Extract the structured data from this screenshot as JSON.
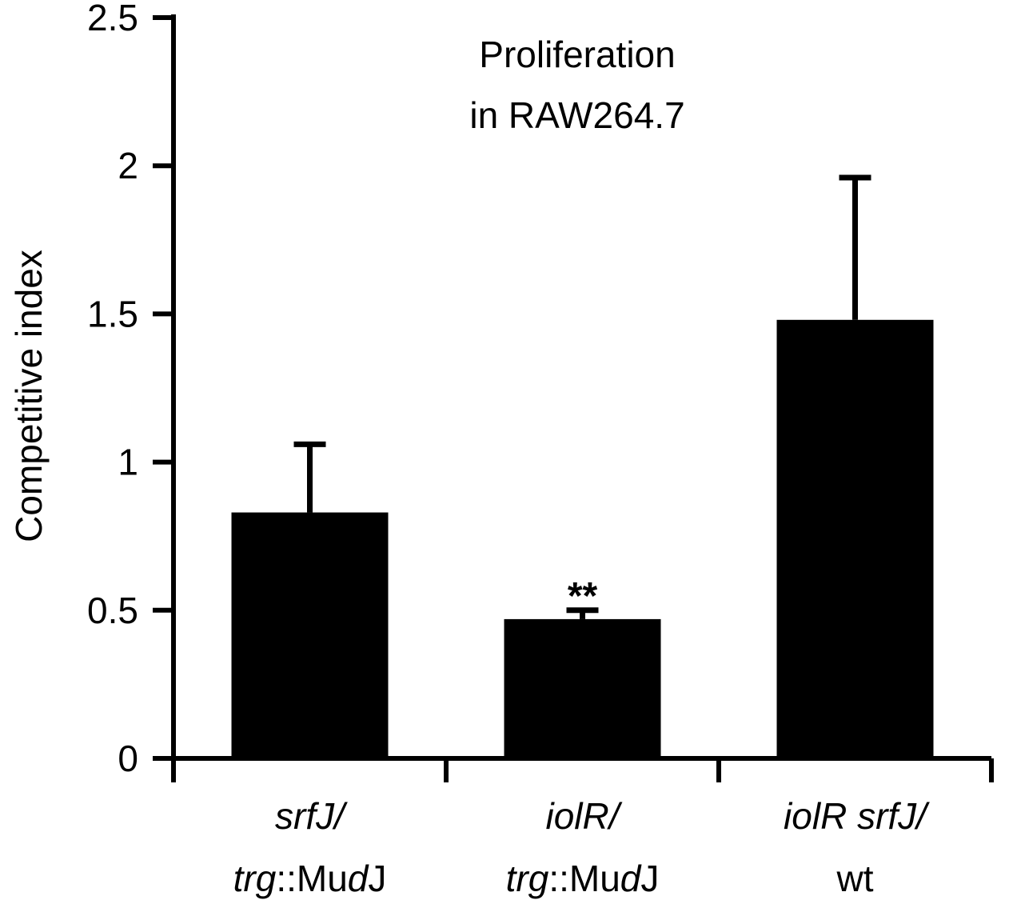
{
  "chart_data": {
    "type": "bar",
    "title_lines": [
      "Proliferation",
      "in RAW264.7"
    ],
    "ylabel": "Competitive index",
    "xlabel": "",
    "ylim": [
      0,
      2.5
    ],
    "yticks": [
      0,
      0.5,
      1,
      1.5,
      2,
      2.5
    ],
    "ytick_labels": [
      "0",
      "0.5",
      "1",
      "1.5",
      "2",
      "2.5"
    ],
    "categories": [
      {
        "line1": [
          {
            "text": "srfJ/",
            "italic": true
          }
        ],
        "line2": [
          {
            "text": "trg",
            "italic": true
          },
          {
            "text": "::Mu",
            "italic": false
          },
          {
            "text": "d",
            "italic": true
          },
          {
            "text": "J",
            "italic": false
          }
        ]
      },
      {
        "line1": [
          {
            "text": "iolR/",
            "italic": true
          }
        ],
        "line2": [
          {
            "text": "trg",
            "italic": true
          },
          {
            "text": "::Mu",
            "italic": false
          },
          {
            "text": "d",
            "italic": true
          },
          {
            "text": "J",
            "italic": false
          }
        ]
      },
      {
        "line1": [
          {
            "text": "iolR srfJ/",
            "italic": true
          }
        ],
        "line2": [
          {
            "text": "wt",
            "italic": false
          }
        ]
      }
    ],
    "values": [
      0.83,
      0.47,
      1.48
    ],
    "error_upper": [
      0.23,
      0.03,
      0.48
    ],
    "annotations": [
      "",
      "**",
      ""
    ],
    "bar_color": "#000000",
    "grid": false,
    "legend": "none"
  }
}
